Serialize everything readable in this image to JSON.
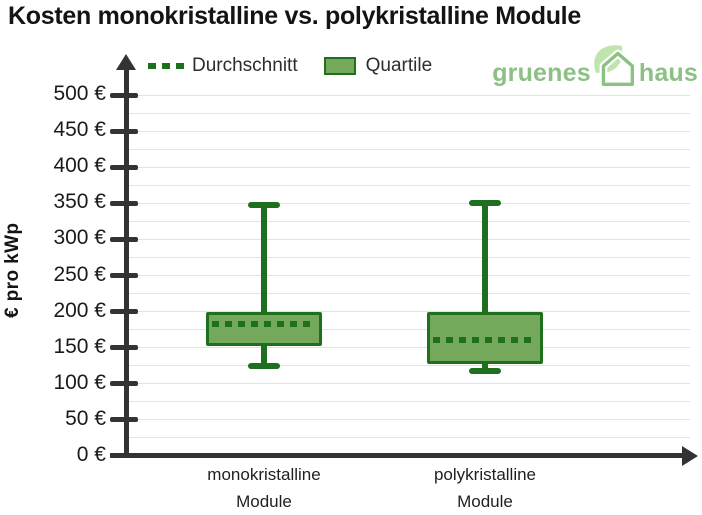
{
  "page": {
    "title": "Kosten monokristalline vs. polykristalline Module"
  },
  "legend": {
    "mean_label": "Durchschnitt",
    "quartile_label": "Quartile"
  },
  "logo": {
    "text_left": "gruenes",
    "text_right": "haus"
  },
  "colors": {
    "box_fill": "#74a85a",
    "box_border": "#1e701e",
    "axis": "#333333",
    "grid": "#e3e3e3",
    "tick_text": "#1b1b1b",
    "title_text": "#141414",
    "logo_green": "#8cc084",
    "logo_leaf": "#bfe5ae"
  },
  "chart_data": {
    "type": "boxplot",
    "title": "Kosten monokristalline vs. polykristalline Module",
    "ylabel": "€ pro kWp",
    "xlabel": "",
    "ylim": [
      0,
      500
    ],
    "ytick_step": 50,
    "grid_step": 25,
    "tick_suffix": " €",
    "grid": true,
    "legend_position": "top",
    "legend_entries": [
      "Durchschnitt",
      "Quartile"
    ],
    "categories": [
      {
        "line1": "monokristalline",
        "line2": "Module"
      },
      {
        "line1": "polykristalline",
        "line2": "Module"
      }
    ],
    "series": [
      {
        "name": "monokristalline Module",
        "min": 125,
        "q1": 152,
        "mean": 183,
        "q3": 200,
        "max": 347
      },
      {
        "name": "polykristalline Module",
        "min": 118,
        "q1": 127,
        "mean": 160,
        "q3": 199,
        "max": 350
      }
    ]
  }
}
